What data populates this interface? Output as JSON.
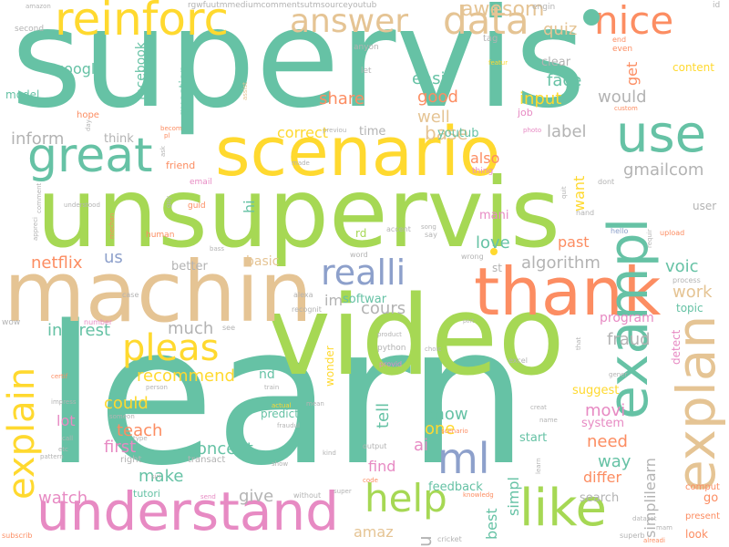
{
  "palette": {
    "teal": "#66c2a5",
    "lime": "#a6d854",
    "yellow": "#ffd92f",
    "orange": "#fc8d62",
    "tan": "#e5c494",
    "pink": "#e78ac3",
    "blue": "#8da0cb",
    "gray": "#b3b3b3"
  },
  "words": {
    "supervis": "supervis",
    "learn": "learn",
    "unsupervis": "unsupervis",
    "video": "video",
    "machin": "machin",
    "scenario": "scenario",
    "thank": "thank",
    "reinforc": "reinforc",
    "examp": "exampl",
    "explan": "explan",
    "understand": "understand",
    "great": "great",
    "use": "use",
    "like": "like",
    "help": "help",
    "explain": "explain",
    "nice": "nice",
    "data": "data",
    "answer": "answer",
    "pleas": "pleas",
    "realli": "realli",
    "ml": "ml",
    "awesom": "awesom",
    "quiz": "quiz",
    "easi": "easi",
    "googl": "googl",
    "good": "good",
    "input": "input",
    "face": "face",
    "would": "would",
    "get": "get",
    "clear": "clear",
    "share": "share",
    "well": "well",
    "base": "base",
    "inform": "inform",
    "think": "think",
    "correct": "correct",
    "time": "time",
    "youtub": "youtub",
    "label": "label",
    "gmailcom": "gmailcom",
    "also": "also",
    "want": "want",
    "mani": "mani",
    "love": "love",
    "past": "past",
    "netflix": "netflix",
    "us": "us",
    "basic": "basic",
    "better": "better",
    "algorithm": "algorithm",
    "voic": "voic",
    "work": "work",
    "im": "im",
    "softwar": "softwar",
    "cours": "cours",
    "interest": "interest",
    "much": "much",
    "program": "program",
    "fraud": "fraud",
    "recommend": "recommend",
    "nd": "nd",
    "wonder": "wonder",
    "could": "could",
    "know": "know",
    "one": "one",
    "movi": "movi",
    "suggest": "suggest",
    "teach": "teach",
    "lot": "lot",
    "tell": "tell",
    "system": "system",
    "first": "first",
    "need": "need",
    "concept": "concept",
    "ai": "ai",
    "way": "way",
    "make": "make",
    "watch": "watch",
    "give": "give",
    "find": "find",
    "differ": "differ",
    "simplilearn": "simplilearn",
    "feedback": "feedback",
    "search": "search",
    "amaz": "amaz",
    "u": "u",
    "best": "best",
    "simpl": "simpl",
    "start": "start",
    "go": "go",
    "model": "model",
    "facebook": "facebook",
    "question": "question",
    "content": "content",
    "job": "job",
    "hope": "hope",
    "friend": "friend",
    "hi": "hi",
    "rd": "rd",
    "user": "user",
    "topic": "topic",
    "detect": "detect",
    "predict": "predict",
    "tutori": "tutori",
    "right": "right",
    "transact": "transact",
    "comput": "comput",
    "present": "present",
    "look": "look",
    "engin": "engin",
    "id": "id",
    "tag": "tag",
    "even": "even",
    "end": "end",
    "let": "let",
    "anyon": "anyon",
    "second": "second",
    "amazon": "amazon",
    "rgwfuutmmediumcommentsutmsourceyoutub": "rgwfuutmmediumcommentsutmsourceyoutub",
    "wow": "wow",
    "number": "number",
    "see": "see",
    "python": "python",
    "excel": "excel",
    "provid": "provid",
    "alexa": "alexa",
    "recognit": "recognit",
    "case": "case",
    "st": "st",
    "wrong": "wrong",
    "hand": "hand",
    "hello": "hello",
    "upload": "upload",
    "requir": "requir",
    "process": "process",
    "guid": "guid",
    "email": "email",
    "guy": "guy",
    "human": "human",
    "bass": "bass",
    "word": "word",
    "say": "say",
    "accent": "accent",
    "song": "song",
    "dont": "dont",
    "quit": "quit",
    "made": "made",
    "thing": "thing",
    "becom": "becom",
    "pl": "pl",
    "custom": "custom",
    "photo": "photo",
    "previou": "previou",
    "assist": "assist",
    "comment": "comment",
    "mechan": "mechan",
    "understood": "understood",
    "appreci": "appreci",
    "person": "person",
    "impress": "impress",
    "certif": "certif",
    "train": "train",
    "actual": "actual",
    "mean": "mean",
    "fraudul": "fraudul",
    "product": "product",
    "choic": "choic",
    "creat": "creat",
    "name": "name",
    "that": "that",
    "gener": "gener",
    "call": "call",
    "etc": "etc",
    "pattern": "pattern",
    "someon": "someon",
    "type": "type",
    "siri": "siri",
    "show": "show",
    "kind": "kind",
    "output": "output",
    "send": "send",
    "without": "without",
    "super": "super",
    "code": "code",
    "knowledg": "knowledg",
    "cricket": "cricket",
    "superb": "superb",
    "alreadi": "alreadi",
    "mam": "mam",
    "dataset": "dataset",
    "subscrib": "subscrib",
    "port": "port",
    "scenario_small": "scenario",
    "learn_small": "learn",
    "day": "day",
    "feature": "featur",
    "ask": "ask"
  }
}
